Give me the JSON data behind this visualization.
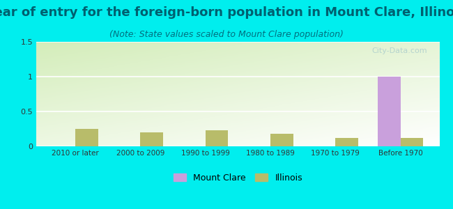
{
  "title": "Year of entry for the foreign-born population in Mount Clare, Illinois",
  "subtitle": "(Note: State values scaled to Mount Clare population)",
  "categories": [
    "2010 or later",
    "2000 to 2009",
    "1990 to 1999",
    "1980 to 1989",
    "1970 to 1979",
    "Before 1970"
  ],
  "mount_clare_values": [
    0,
    0,
    0,
    0,
    0,
    1.0
  ],
  "illinois_values": [
    0.25,
    0.2,
    0.23,
    0.18,
    0.12,
    0.12
  ],
  "mount_clare_color": "#c9a0dc",
  "illinois_color": "#b8bc6a",
  "background_color": "#00eeee",
  "title_color": "#006070",
  "subtitle_color": "#007080",
  "ylim": [
    0,
    1.5
  ],
  "yticks": [
    0,
    0.5,
    1,
    1.5
  ],
  "bar_width": 0.35,
  "title_fontsize": 13,
  "subtitle_fontsize": 9,
  "watermark": "City-Data.com"
}
